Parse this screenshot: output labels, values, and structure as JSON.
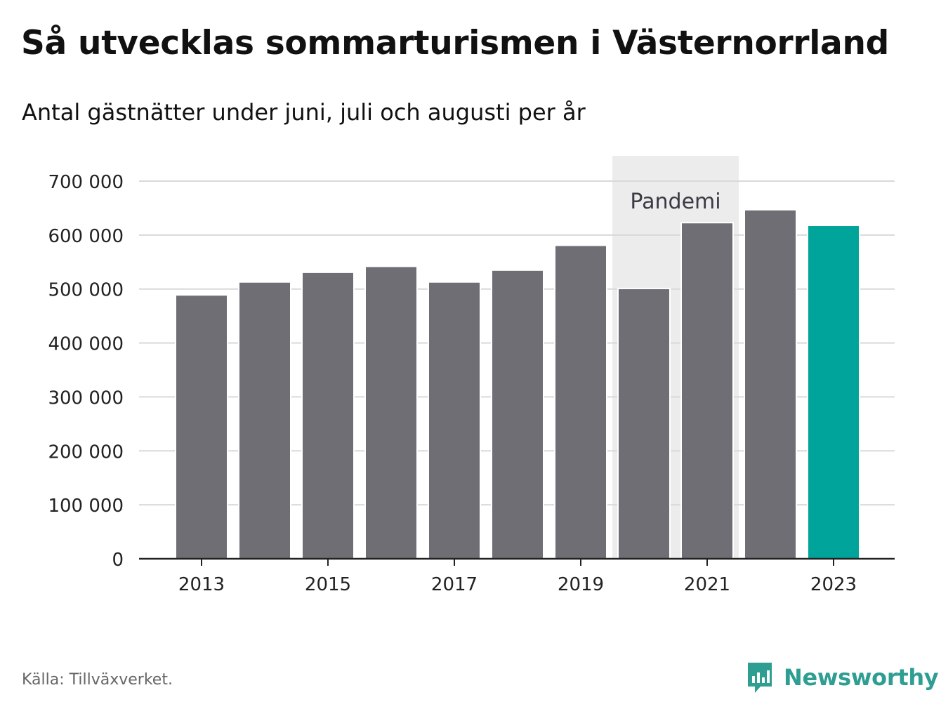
{
  "colors": {
    "bar": "#6f6e75",
    "highlight": "#00a49a",
    "shade": "#ececec",
    "grid": "#d9d9d9",
    "axis": "#222222",
    "brand": "#2e9e92"
  },
  "chart_data": {
    "type": "bar",
    "title": "Så utvecklas sommarturismen i Västernorrland",
    "subtitle": "Antal gästnätter under juni, juli och augusti per år",
    "categories": [
      "2013",
      "2014",
      "2015",
      "2016",
      "2017",
      "2018",
      "2019",
      "2020",
      "2021",
      "2022",
      "2023"
    ],
    "x_tick_labels": [
      "2013",
      "2015",
      "2017",
      "2019",
      "2021",
      "2023"
    ],
    "values": [
      489000,
      513000,
      531000,
      542000,
      513000,
      535000,
      581000,
      501000,
      623000,
      647000,
      618000
    ],
    "highlight_category": "2023",
    "ylim": [
      0,
      700000
    ],
    "y_ticks": [
      0,
      100000,
      200000,
      300000,
      400000,
      500000,
      600000,
      700000
    ],
    "y_tick_labels": [
      "0",
      "100 000",
      "200 000",
      "300 000",
      "400 000",
      "500 000",
      "600 000",
      "700 000"
    ],
    "grid": true,
    "annotation": {
      "label": "Pandemi",
      "from": "2020",
      "to": "2021"
    },
    "xlabel": "",
    "ylabel": ""
  },
  "footer": {
    "source": "Källa: Tillväxverket.",
    "brand": "Newsworthy",
    "brand_icon": "newsworthy-logo-icon"
  }
}
